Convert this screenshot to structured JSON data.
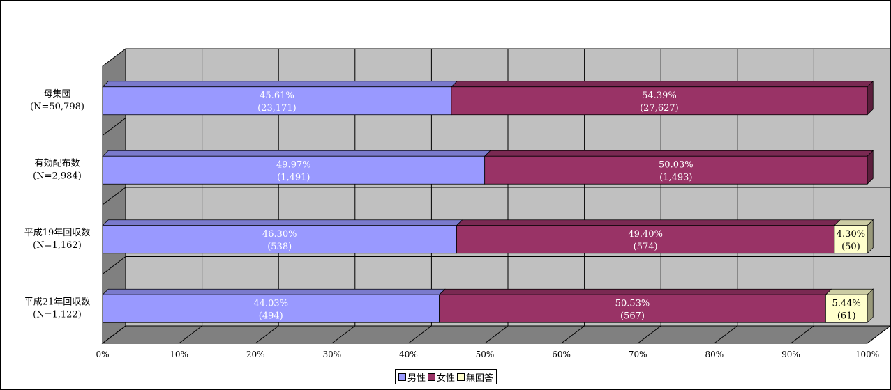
{
  "chart_data": {
    "type": "bar",
    "orientation": "horizontal",
    "stacked": "percent",
    "three_d": true,
    "title": "",
    "xlabel": "",
    "ylabel": "",
    "categories": [
      {
        "name": "母集団",
        "n_label": "(N=50,798)"
      },
      {
        "name": "有効配布数",
        "n_label": "(N=2,984)"
      },
      {
        "name": "平成19年回収数",
        "n_label": "(N=1,162)"
      },
      {
        "name": "平成21年回収数",
        "n_label": "(N=1,122)"
      }
    ],
    "series": [
      {
        "name": "男性",
        "color": "#9999FF",
        "values": [
          45.61,
          49.97,
          46.3,
          44.03
        ],
        "value_labels": [
          "45.61%",
          "49.97%",
          "46.30%",
          "44.03%"
        ],
        "count_labels": [
          "(23,171)",
          "(1,491)",
          "(538)",
          "(494)"
        ]
      },
      {
        "name": "女性",
        "color": "#993366",
        "values": [
          54.39,
          50.03,
          49.4,
          50.53
        ],
        "value_labels": [
          "54.39%",
          "50.03%",
          "49.40%",
          "50.53%"
        ],
        "count_labels": [
          "(27,627)",
          "(1,493)",
          "(574)",
          "(567)"
        ]
      },
      {
        "name": "無回答",
        "color": "#FFFFCC",
        "values": [
          0,
          0,
          4.3,
          5.44
        ],
        "value_labels": [
          "",
          "",
          "4.30%",
          "5.44%"
        ],
        "count_labels": [
          "",
          "",
          "(50)",
          "(61)"
        ]
      }
    ],
    "x_ticks": [
      "0%",
      "10%",
      "20%",
      "30%",
      "40%",
      "50%",
      "60%",
      "70%",
      "80%",
      "90%",
      "100%"
    ],
    "xlim": [
      0,
      100
    ],
    "grid": true,
    "legend_position": "bottom",
    "colors": {
      "wall": "#C0C0C0",
      "floor": "#808080",
      "side_wall": "#808080",
      "gridline": "#000000",
      "label_light": "#FFFFFF",
      "label_dark": "#000000"
    }
  }
}
